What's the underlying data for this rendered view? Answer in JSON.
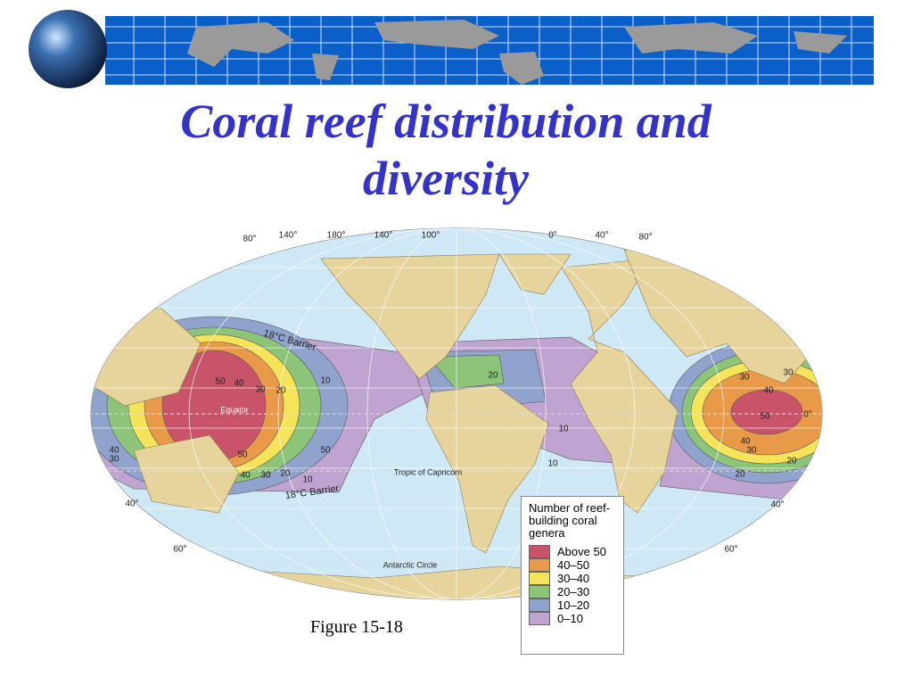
{
  "title": "Coral reef distribution and diversity",
  "caption": "Figure 15-18",
  "map": {
    "longitude_labels": [
      "80°",
      "140°",
      "180°",
      "140°",
      "100°",
      "0°",
      "40°",
      "80°"
    ],
    "latitude_labels_left": [
      "40°",
      "60°"
    ],
    "latitude_labels_right": [
      "0°",
      "40°",
      "60°"
    ],
    "annotations": [
      "18°C Barrier",
      "18°C Barrier",
      "Equator",
      "Tropic of Capricorn",
      "Antarctic Circle"
    ],
    "contour_labels": [
      "50",
      "40",
      "30",
      "20",
      "10",
      "40",
      "30",
      "50",
      "40",
      "30",
      "20",
      "10",
      "50",
      "10",
      "20",
      "10",
      "30",
      "40",
      "30",
      "50",
      "40",
      "30",
      "20",
      "20"
    ]
  },
  "legend": {
    "title": "Number of reef-building coral genera",
    "items": [
      {
        "label": "Above 50",
        "color": "#c9546a"
      },
      {
        "label": "40–50",
        "color": "#e99a48"
      },
      {
        "label": "30–40",
        "color": "#f5e45a"
      },
      {
        "label": "20–30",
        "color": "#8cc47a"
      },
      {
        "label": "10–20",
        "color": "#8fa3cc"
      },
      {
        "label": "0–10",
        "color": "#bfa3d0"
      }
    ]
  }
}
